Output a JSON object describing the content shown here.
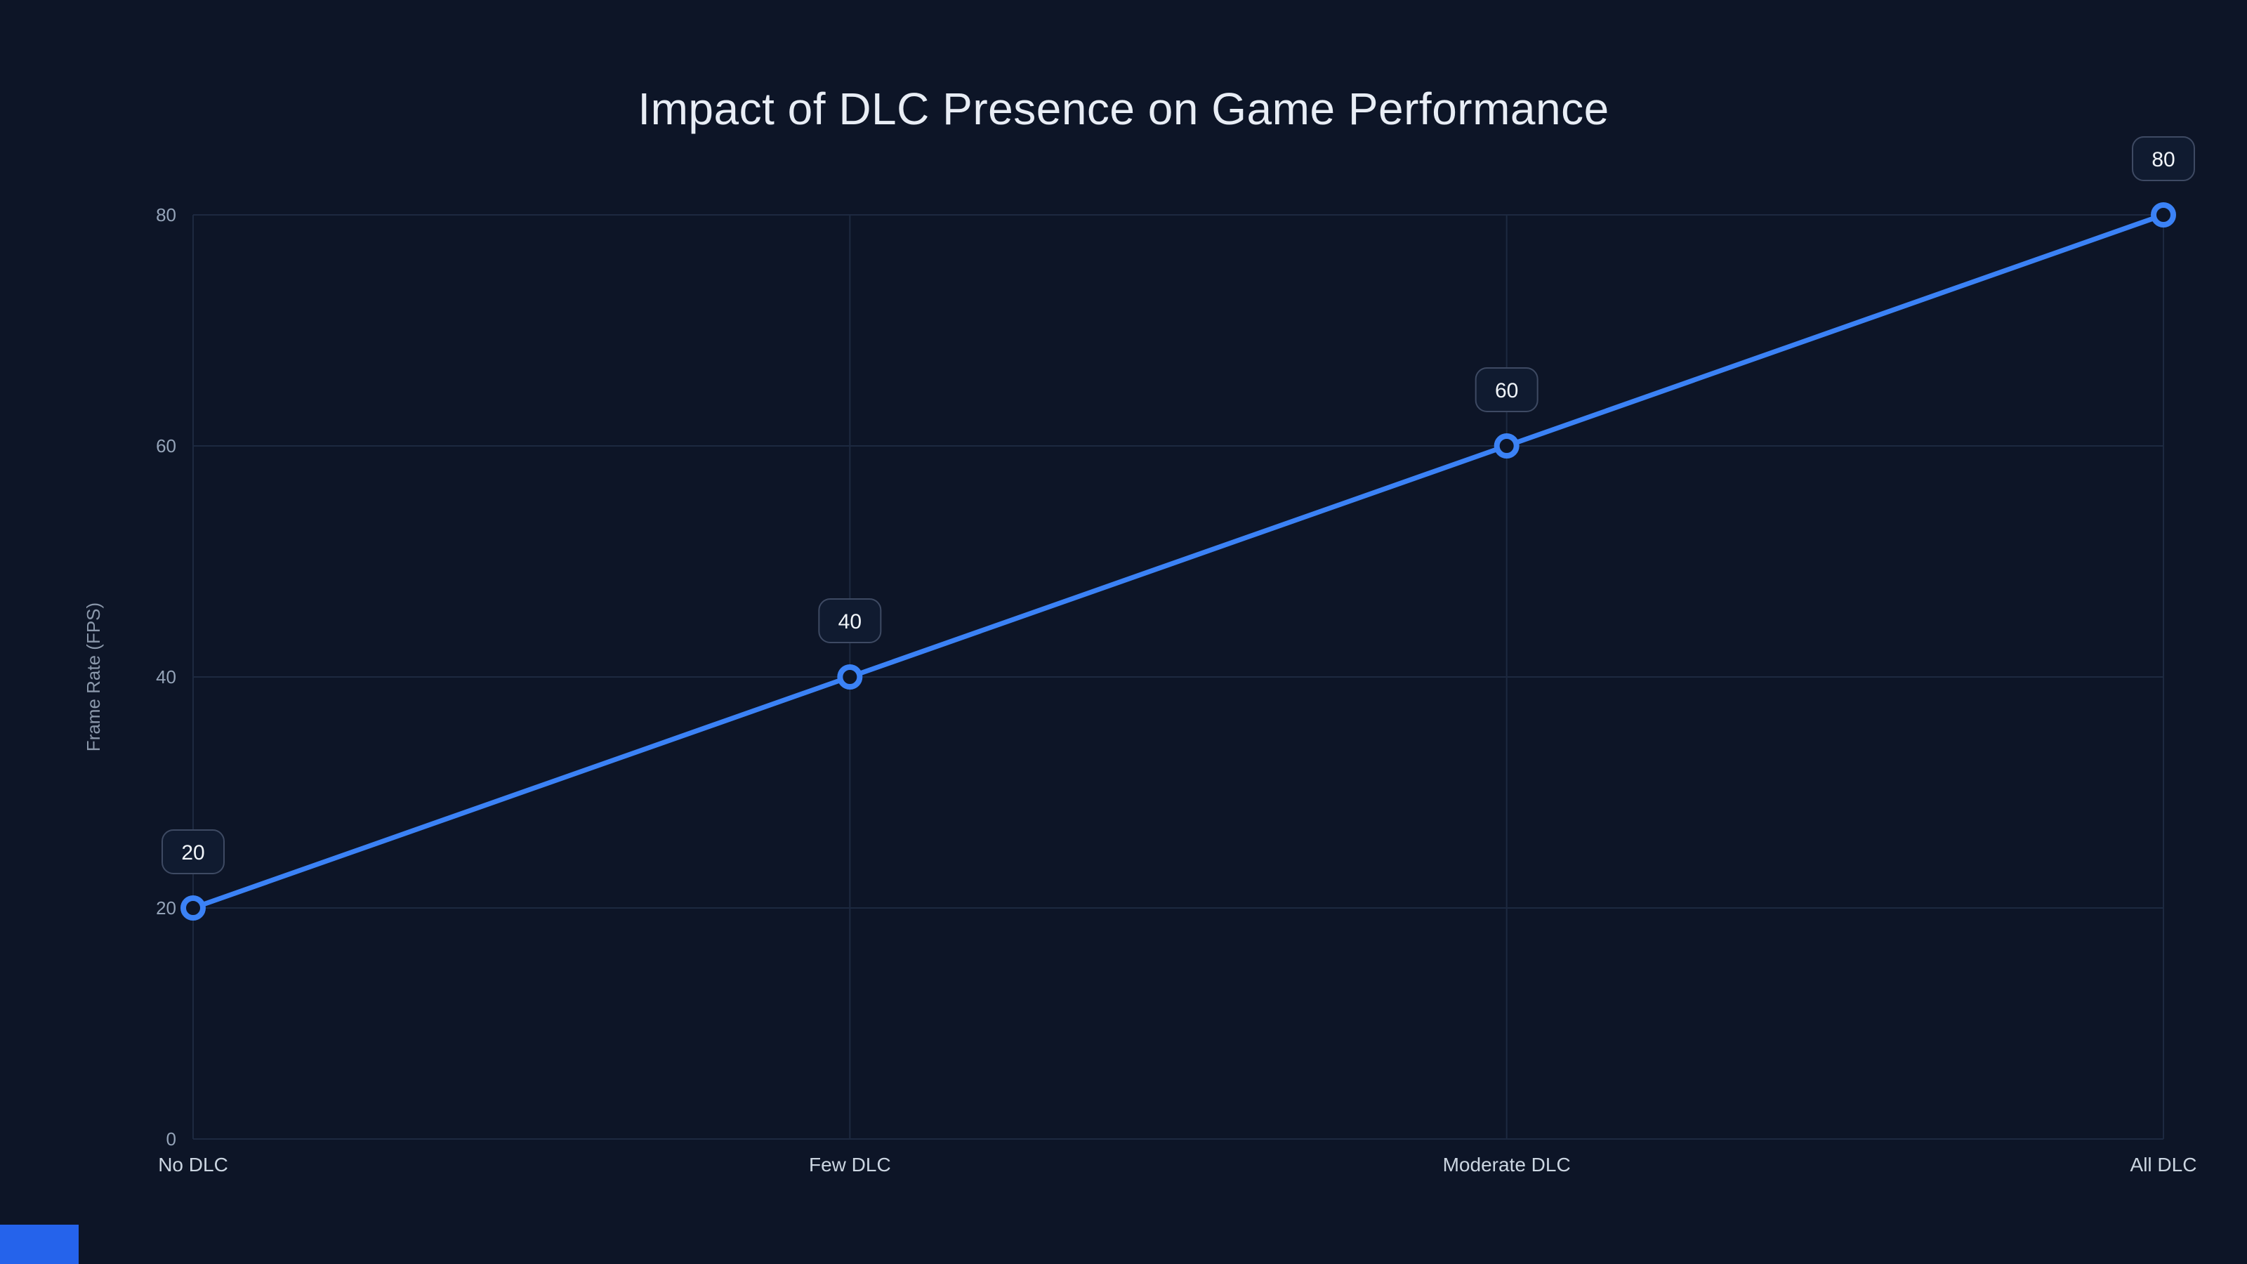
{
  "page": {
    "background": "#0d1527",
    "grid_color": "#1d2940",
    "accent": "#3b82f6"
  },
  "chart_data": {
    "type": "line",
    "title": "Impact of DLC Presence on Game Performance",
    "categories": [
      "No DLC",
      "Few DLC",
      "Moderate DLC",
      "All DLC"
    ],
    "series": [
      {
        "name": "Frame Rate",
        "values": [
          20,
          40,
          60,
          80
        ]
      }
    ],
    "point_labels": [
      "20",
      "40",
      "60",
      "80"
    ],
    "xlabel": "",
    "ylabel": "Frame Rate (FPS)",
    "ylim": [
      0,
      80
    ],
    "yticks": [
      0,
      20,
      40,
      60,
      80
    ],
    "grid": true,
    "legend": "none",
    "colors": {
      "line": "#3b82f6",
      "point_fill": "#0d1527",
      "point_stroke": "#3b82f6",
      "label_box_fill": "#101b30",
      "label_box_border": "#3e4a63",
      "label_text": "#f1f5f9",
      "tick_text": "#94a3b8",
      "category_text": "#cbd5e1",
      "axis_label_text": "#8b98ab"
    }
  }
}
